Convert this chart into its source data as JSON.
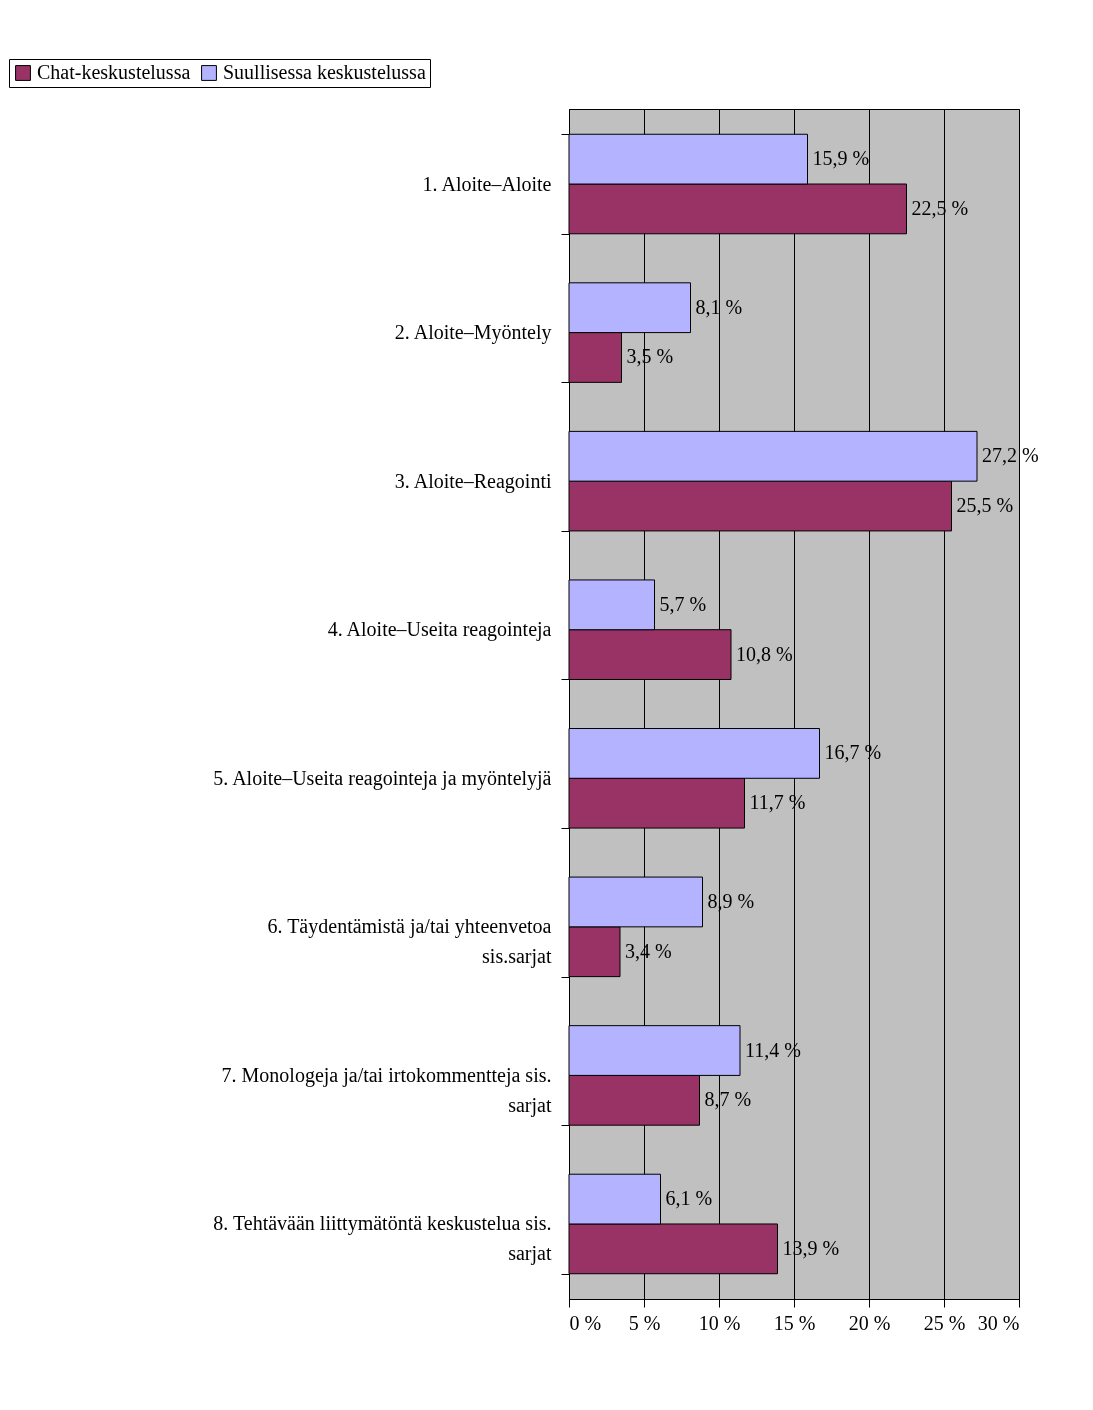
{
  "chart_data": {
    "type": "bar",
    "orientation": "horizontal",
    "categories": [
      "1. Aloite–Aloite",
      "2. Aloite–Myöntely",
      "3. Aloite–Reagointi",
      "4. Aloite–Useita reagointeja",
      "5. Aloite–Useita reagointeja ja myöntelyjä",
      "6. Täydentämistä ja/tai yhteenvetoa sis.sarjat",
      "7. Monologeja ja/tai irtokommentteja sis. sarjat",
      "8. Tehtävään liittymätöntä keskustelua sis. sarjat"
    ],
    "series": [
      {
        "name": "Chat-keskustelussa",
        "color": "#993366",
        "values": [
          22.5,
          3.5,
          25.5,
          10.8,
          11.7,
          3.4,
          8.7,
          13.9
        ],
        "value_labels": [
          "22,5 %",
          "3,5 %",
          "25,5 %",
          "10,8 %",
          "11,7 %",
          "3,4 %",
          "8,7 %",
          "13,9 %"
        ]
      },
      {
        "name": "Suullisessa keskustelussa",
        "color": "#b3b3ff",
        "values": [
          15.9,
          8.1,
          27.2,
          5.7,
          16.7,
          8.9,
          11.4,
          6.1
        ],
        "value_labels": [
          "15,9 %",
          "8,1 %",
          "27,2 %",
          "5,7 %",
          "16,7 %",
          "8,9 %",
          "11,4 %",
          "6,1 %"
        ]
      }
    ],
    "xlim": [
      0,
      30
    ],
    "xticks": [
      {
        "value": 0,
        "label": "0 %"
      },
      {
        "value": 5,
        "label": "5 %"
      },
      {
        "value": 10,
        "label": "10 %"
      },
      {
        "value": 15,
        "label": "15 %"
      },
      {
        "value": 20,
        "label": "20 %"
      },
      {
        "value": 25,
        "label": "25 %"
      },
      {
        "value": 30,
        "label": "30 %"
      }
    ],
    "grid": "x",
    "legend": "top left"
  }
}
